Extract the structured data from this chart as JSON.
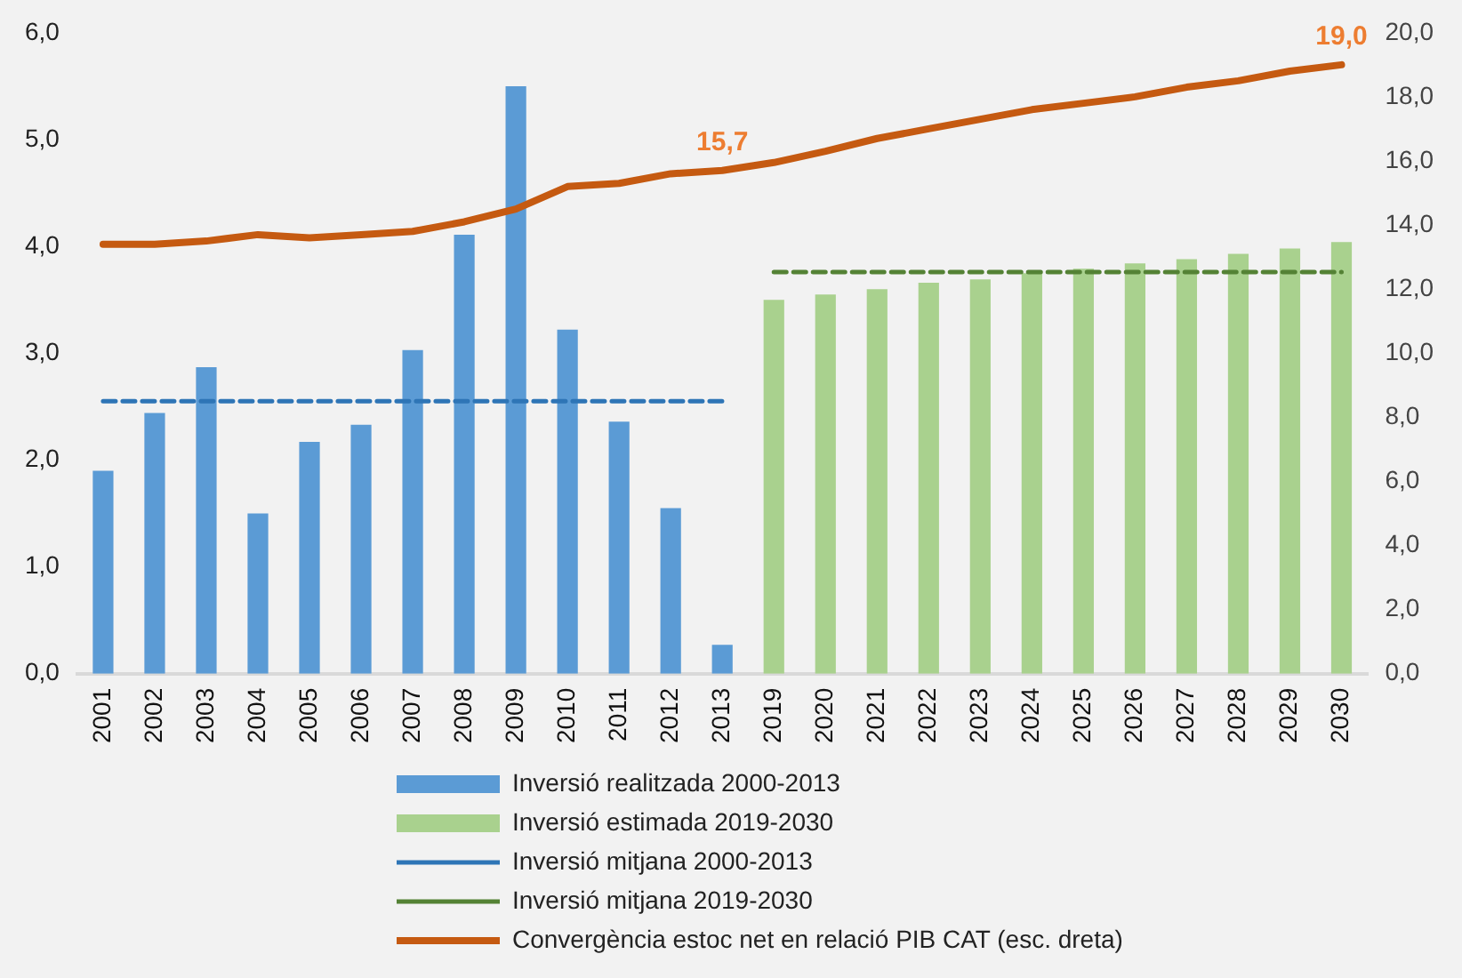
{
  "chart_data": {
    "type": "bar",
    "categories": [
      "2001",
      "2002",
      "2003",
      "2004",
      "2005",
      "2006",
      "2007",
      "2008",
      "2009",
      "2010",
      "2011",
      "2012",
      "2013",
      "2019",
      "2020",
      "2021",
      "2022",
      "2023",
      "2024",
      "2025",
      "2026",
      "2027",
      "2028",
      "2029",
      "2030"
    ],
    "series": [
      {
        "name": "Inversió realitzada 2000-2013",
        "color": "#5b9bd5",
        "values": [
          1.9,
          2.44,
          2.87,
          1.5,
          2.17,
          2.33,
          3.03,
          4.11,
          5.5,
          3.22,
          2.36,
          1.55,
          0.27,
          null,
          null,
          null,
          null,
          null,
          null,
          null,
          null,
          null,
          null,
          null,
          null
        ]
      },
      {
        "name": "Inversió estimada 2019-2030",
        "color": "#a9d18e",
        "values": [
          null,
          null,
          null,
          null,
          null,
          null,
          null,
          null,
          null,
          null,
          null,
          null,
          null,
          3.5,
          3.55,
          3.6,
          3.66,
          3.69,
          3.75,
          3.79,
          3.84,
          3.88,
          3.93,
          3.98,
          4.04
        ]
      },
      {
        "name": "Inversió mitjana 2000-2013",
        "type": "line",
        "line_style": "dashed",
        "color": "#2e75b6",
        "values": [
          2.55,
          2.55,
          2.55,
          2.55,
          2.55,
          2.55,
          2.55,
          2.55,
          2.55,
          2.55,
          2.55,
          2.55,
          2.55,
          null,
          null,
          null,
          null,
          null,
          null,
          null,
          null,
          null,
          null,
          null,
          null
        ]
      },
      {
        "name": "Inversió mitjana 2019-2030",
        "type": "line",
        "line_style": "dashed",
        "color": "#548235",
        "values": [
          null,
          null,
          null,
          null,
          null,
          null,
          null,
          null,
          null,
          null,
          null,
          null,
          null,
          3.76,
          3.76,
          3.76,
          3.76,
          3.76,
          3.76,
          3.76,
          3.76,
          3.76,
          3.76,
          3.76,
          3.76
        ]
      },
      {
        "name": "Convergència estoc net en relació PIB CAT (esc. dreta)",
        "type": "line",
        "line_style": "solid",
        "axis": "y2",
        "color": "#c55a11",
        "values": [
          13.4,
          13.4,
          13.5,
          13.7,
          13.6,
          13.7,
          13.8,
          14.1,
          14.5,
          15.2,
          15.3,
          15.6,
          15.7,
          15.95,
          16.3,
          16.7,
          17.0,
          17.3,
          17.6,
          17.8,
          18.0,
          18.3,
          18.5,
          18.8,
          19.0
        ],
        "value_labels": [
          null,
          null,
          null,
          null,
          null,
          null,
          null,
          null,
          null,
          null,
          null,
          null,
          "15,7",
          null,
          null,
          null,
          null,
          null,
          null,
          null,
          null,
          null,
          null,
          null,
          "19,0"
        ]
      }
    ],
    "ylim": [
      0,
      6
    ],
    "yticks": [
      {
        "value": 0,
        "label": "0,0"
      },
      {
        "value": 1,
        "label": "1,0"
      },
      {
        "value": 2,
        "label": "2,0"
      },
      {
        "value": 3,
        "label": "3,0"
      },
      {
        "value": 4,
        "label": "4,0"
      },
      {
        "value": 5,
        "label": "5,0"
      },
      {
        "value": 6,
        "label": "6,0"
      }
    ],
    "y2lim": [
      0,
      20
    ],
    "y2ticks": [
      {
        "value": 0,
        "label": "0,0"
      },
      {
        "value": 2,
        "label": "2,0"
      },
      {
        "value": 4,
        "label": "4,0"
      },
      {
        "value": 6,
        "label": "6,0"
      },
      {
        "value": 8,
        "label": "8,0"
      },
      {
        "value": 10,
        "label": "10,0"
      },
      {
        "value": 12,
        "label": "12,0"
      },
      {
        "value": 14,
        "label": "14,0"
      },
      {
        "value": 16,
        "label": "16,0"
      },
      {
        "value": 18,
        "label": "18,0"
      },
      {
        "value": 20,
        "label": "20,0"
      }
    ],
    "grid": false,
    "legend": "bottom",
    "marker": "none"
  }
}
